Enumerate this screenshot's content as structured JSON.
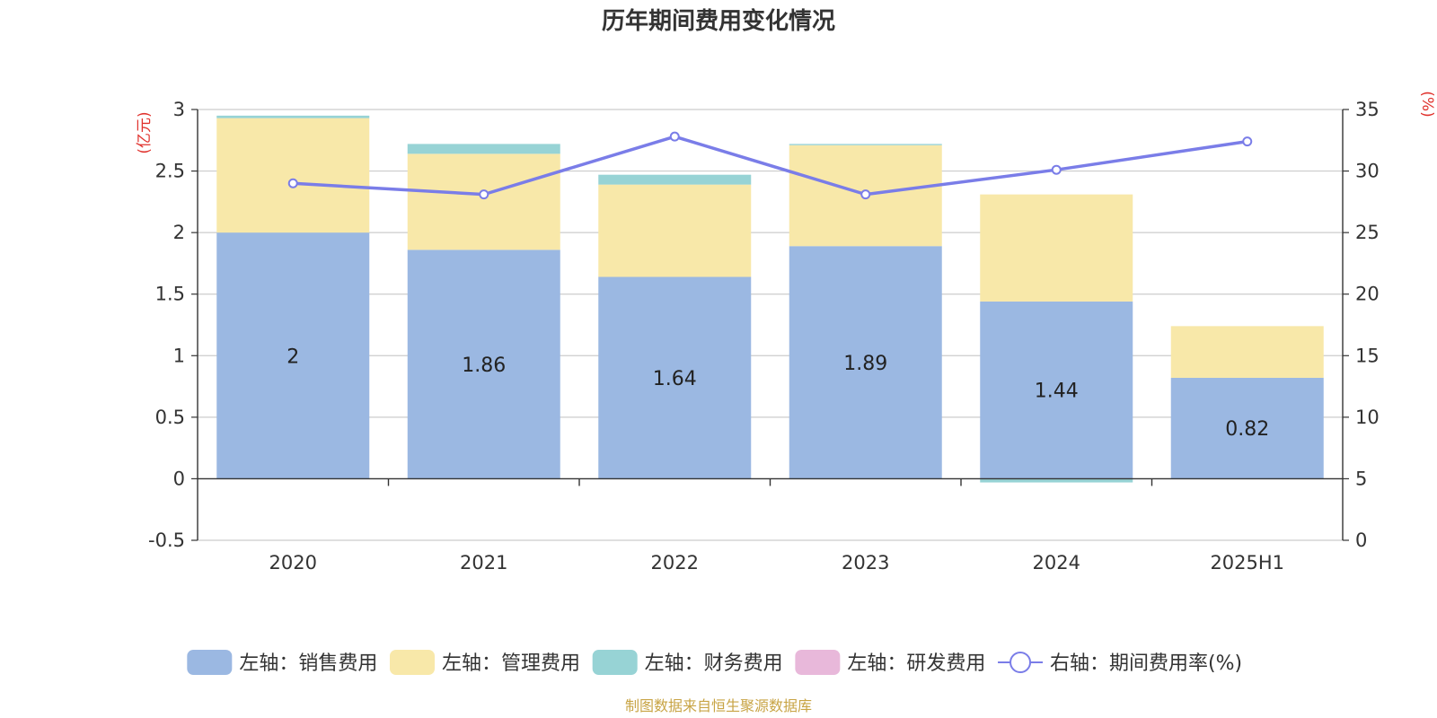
{
  "chart_data": {
    "type": "bar",
    "title": "历年期间费用变化情况",
    "categories": [
      "2020",
      "2021",
      "2022",
      "2023",
      "2024",
      "2025H1"
    ],
    "series": [
      {
        "name": "左轴：销售费用",
        "values": [
          2.0,
          1.86,
          1.64,
          1.89,
          1.44,
          0.82
        ],
        "color": "#9bb8e2",
        "axis": "left",
        "stack": true
      },
      {
        "name": "左轴：管理费用",
        "values": [
          0.93,
          0.78,
          0.75,
          0.82,
          0.87,
          0.42
        ],
        "color": "#f8e8a9",
        "axis": "left",
        "stack": true
      },
      {
        "name": "左轴：财务费用",
        "values": [
          0.02,
          0.08,
          0.08,
          0.01,
          -0.03,
          0.0
        ],
        "color": "#97d3d5",
        "axis": "left",
        "stack": true
      },
      {
        "name": "左轴：研发费用",
        "values": [
          0,
          0,
          0,
          0,
          0,
          0
        ],
        "color": "#e8b8da",
        "axis": "left",
        "stack": true
      },
      {
        "name": "右轴：期间费用率(%)",
        "values": [
          29.0,
          28.1,
          32.8,
          28.1,
          30.1,
          32.4
        ],
        "color": "#7a7de8",
        "axis": "right",
        "type": "line"
      }
    ],
    "data_labels": [
      "2",
      "1.86",
      "1.64",
      "1.89",
      "1.44",
      "0.82"
    ],
    "left_axis": {
      "unit": "(亿元)",
      "range": [
        -0.5,
        3
      ],
      "ticks": [
        -0.5,
        0,
        0.5,
        1,
        1.5,
        2,
        2.5,
        3
      ],
      "tick_labels": [
        "-0.5",
        "0",
        "0.5",
        "1",
        "1.5",
        "2",
        "2.5",
        "3"
      ]
    },
    "right_axis": {
      "unit": "(%)",
      "range": [
        0,
        35
      ],
      "ticks": [
        0,
        5,
        10,
        15,
        20,
        25,
        30,
        35
      ],
      "tick_labels": [
        "0",
        "5",
        "10",
        "15",
        "20",
        "25",
        "30",
        "35"
      ]
    },
    "grid": true,
    "legend_position": "bottom",
    "source": "制图数据来自恒生聚源数据库",
    "unit_color": "#e0322d",
    "source_color": "#c8a445",
    "axis_color": "#333333",
    "grid_color": "#cccccc"
  }
}
